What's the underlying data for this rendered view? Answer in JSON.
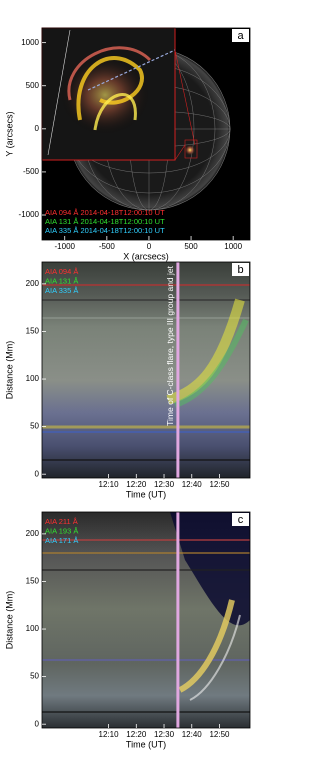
{
  "chart_data": [
    {
      "type": "image",
      "panel": "a",
      "xlabel": "X (arcsecs)",
      "ylabel": "Y (arcsecs)",
      "xlim": [
        -1270,
        1200
      ],
      "ylim": [
        -1290,
        1170
      ],
      "xticks": [
        -1000,
        -500,
        0,
        500,
        1000
      ],
      "yticks": [
        -1000,
        -500,
        0,
        500,
        1000
      ],
      "legend": [
        {
          "name": "AIA 094 Å 2014-04-18T12:00:10 UT",
          "color": "#ff3030"
        },
        {
          "name": "AIA 131 Å 2014-04-18T12:00:10 UT",
          "color": "#30e030"
        },
        {
          "name": "AIA 335 Å 2014-04-18T12:00:10 UT",
          "color": "#30d0ff"
        }
      ]
    },
    {
      "type": "image",
      "panel": "b",
      "xlabel": "Time (UT)",
      "ylabel": "Distance (Mm)",
      "xlim": [
        "11:46",
        "13:01"
      ],
      "ylim": [
        -4,
        223
      ],
      "xticks": [
        "12:10",
        "12:20",
        "12:30",
        "12:40",
        "12:50"
      ],
      "yticks": [
        0,
        50,
        100,
        150,
        200
      ],
      "marker": "12:35",
      "annotation": "Time of C-class flare, type III group and jet",
      "legend": [
        {
          "name": "AIA 094 Å",
          "color": "#ff3030"
        },
        {
          "name": "AIA 131 Å",
          "color": "#30e030"
        },
        {
          "name": "AIA 335 Å",
          "color": "#30d0ff"
        }
      ]
    },
    {
      "type": "image",
      "panel": "c",
      "xlabel": "Time (UT)",
      "ylabel": "Distance (Mm)",
      "xlim": [
        "11:46",
        "13:01"
      ],
      "ylim": [
        -4,
        223
      ],
      "xticks": [
        "12:10",
        "12:20",
        "12:30",
        "12:40",
        "12:50"
      ],
      "yticks": [
        0,
        50,
        100,
        150,
        200
      ],
      "marker": "12:35",
      "legend": [
        {
          "name": "AIA 211 Å",
          "color": "#ff3030"
        },
        {
          "name": "AIA 193 Å",
          "color": "#30e030"
        },
        {
          "name": "AIA 171 Å",
          "color": "#30d0ff"
        }
      ]
    }
  ]
}
